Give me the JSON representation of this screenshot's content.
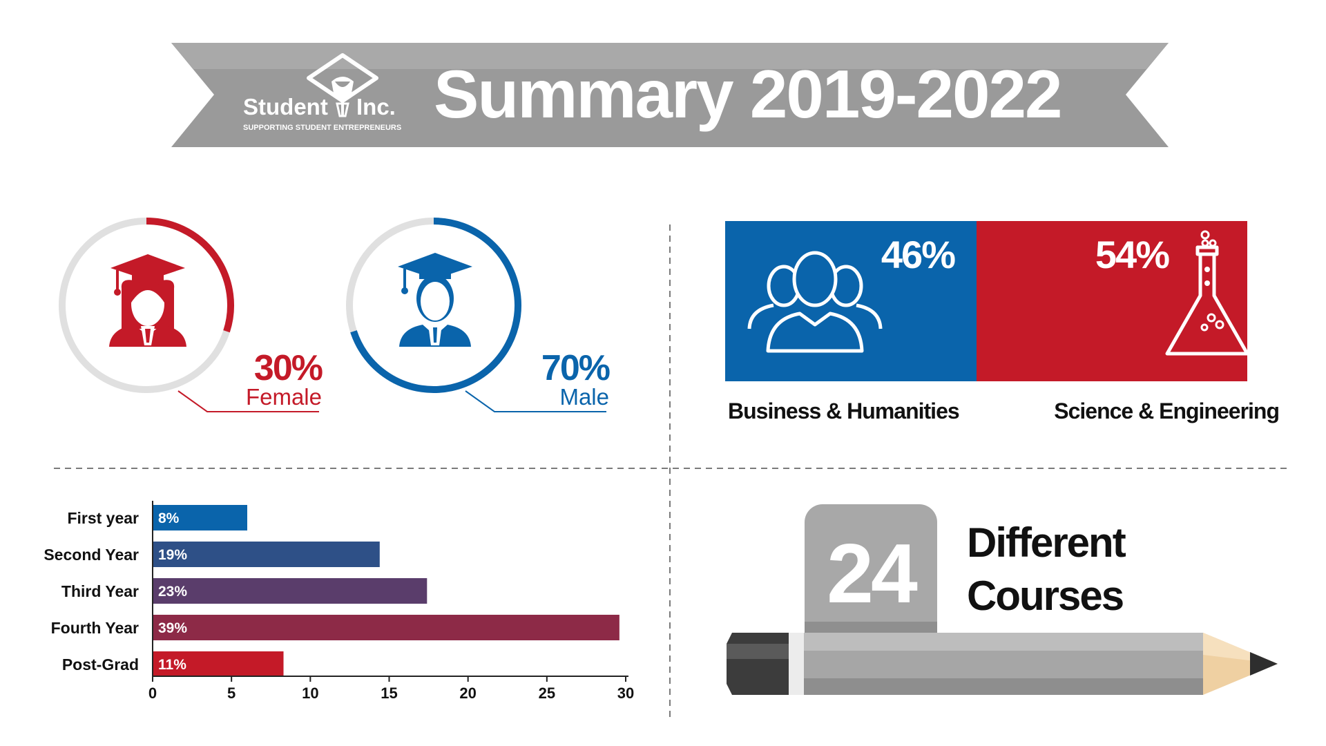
{
  "header": {
    "title": "Summary 2019-2022",
    "logo_name": "Student",
    "logo_suffix": "Inc.",
    "logo_tagline": "SUPPORTING STUDENT ENTREPRENEURS"
  },
  "gender": {
    "female": {
      "percent_label": "30%",
      "label": "Female",
      "fraction": 0.3,
      "icon": "female-graduate-icon"
    },
    "male": {
      "percent_label": "70%",
      "label": "Male",
      "fraction": 0.7,
      "icon": "male-graduate-icon"
    }
  },
  "faculty": {
    "business": {
      "percent_label": "46%",
      "label": "Business & Humanities",
      "fraction": 0.46,
      "icon": "people-group-icon"
    },
    "science": {
      "percent_label": "54%",
      "label": "Science & Engineering",
      "fraction": 0.54,
      "icon": "flask-icon"
    }
  },
  "courses": {
    "count": "24",
    "line1": "Different",
    "line2": "Courses",
    "icon": "pencil-icon"
  },
  "colors": {
    "red": "#c41a28",
    "blue": "#0a64ab",
    "gray": "#9a9a9a",
    "ring_gray": "#e0e0e0"
  },
  "chart_data": [
    {
      "type": "pie",
      "labels": [
        "Female",
        "Male"
      ],
      "values": [
        30,
        70
      ]
    },
    {
      "type": "bar",
      "categories": [
        "Business & Humanities",
        "Science & Engineering"
      ],
      "values": [
        46,
        54
      ]
    },
    {
      "type": "bar",
      "orientation": "horizontal",
      "categories": [
        "First year",
        "Second Year",
        "Third Year",
        "Fourth Year",
        "Post-Grad"
      ],
      "values": [
        6,
        14.4,
        17.4,
        29.6,
        8.3
      ],
      "data_labels": [
        "8%",
        "19%",
        "23%",
        "39%",
        "11%"
      ],
      "colors": [
        "#0a64ab",
        "#2e5087",
        "#5a3d6b",
        "#8d2a47",
        "#c41a28"
      ],
      "xlim": [
        0,
        30
      ],
      "xticks": [
        "0",
        "5",
        "10",
        "15",
        "20",
        "25",
        "30"
      ],
      "grid": false
    }
  ]
}
